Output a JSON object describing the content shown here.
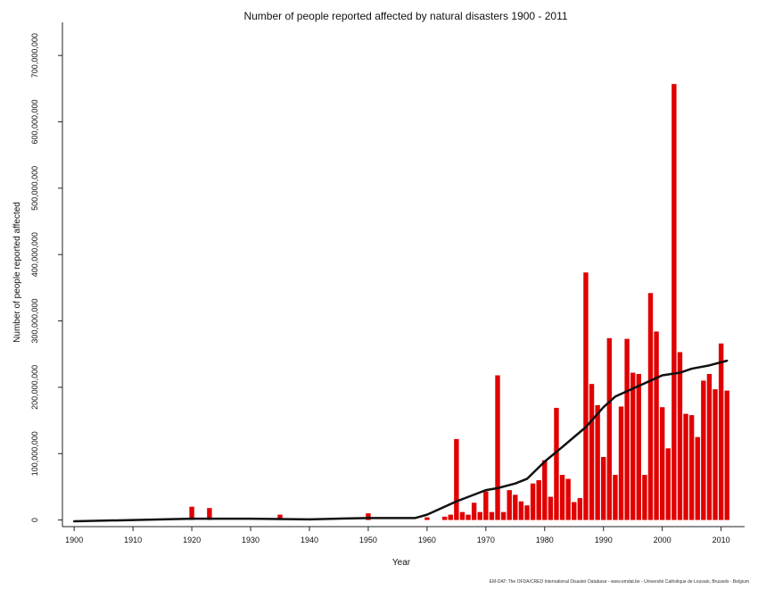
{
  "chart_data": {
    "type": "bar",
    "title": "Number of people reported affected by natural disasters 1900 - 2011",
    "xlabel": "Year",
    "ylabel": "Number of people reported affected",
    "source": "EM-DAT: The OFDA/CRED International Disaster Database - www.emdat.be - Université Catholique de Louvain, Brussels - Belgium",
    "xlim": [
      1898,
      2014
    ],
    "ylim": [
      -10000000,
      750000000
    ],
    "x_ticks": [
      1900,
      1910,
      1920,
      1930,
      1940,
      1950,
      1960,
      1970,
      1980,
      1990,
      2000,
      2010
    ],
    "x_tick_labels": [
      "1900",
      "1910",
      "1920",
      "1930",
      "1940",
      "1950",
      "1960",
      "1970",
      "1980",
      "1990",
      "2000",
      "2010"
    ],
    "y_ticks": [
      0,
      100000000,
      200000000,
      300000000,
      400000000,
      500000000,
      600000000,
      700000000
    ],
    "y_tick_labels": [
      "0",
      "100,000,000",
      "200,000,000",
      "300,000,000",
      "400,000,000",
      "500,000,000",
      "600,000,000",
      "700,000,000"
    ],
    "grid": false,
    "bar_color": "#e00000",
    "trend_color": "#111111",
    "series": [
      {
        "type": "bar",
        "x": [
          1920,
          1923,
          1935,
          1950,
          1960,
          1963,
          1964,
          1965,
          1966,
          1967,
          1968,
          1969,
          1970,
          1971,
          1972,
          1973,
          1974,
          1975,
          1976,
          1977,
          1978,
          1979,
          1980,
          1981,
          1982,
          1983,
          1984,
          1985,
          1986,
          1987,
          1988,
          1989,
          1990,
          1991,
          1992,
          1993,
          1994,
          1995,
          1996,
          1997,
          1998,
          1999,
          2000,
          2001,
          2002,
          2003,
          2004,
          2005,
          2006,
          2007,
          2008,
          2009,
          2010,
          2011
        ],
        "values": [
          20000000,
          18000000,
          8000000,
          10000000,
          4000000,
          5000000,
          8000000,
          122000000,
          12000000,
          8000000,
          26000000,
          12000000,
          43000000,
          12000000,
          218000000,
          12000000,
          45000000,
          38000000,
          28000000,
          22000000,
          55000000,
          60000000,
          90000000,
          35000000,
          169000000,
          68000000,
          62000000,
          27000000,
          33000000,
          373000000,
          205000000,
          173000000,
          95000000,
          274000000,
          68000000,
          171000000,
          273000000,
          222000000,
          220000000,
          68000000,
          342000000,
          284000000,
          170000000,
          108000000,
          657000000,
          253000000,
          160000000,
          158000000,
          125000000,
          210000000,
          220000000,
          197000000,
          266000000,
          195000000
        ]
      },
      {
        "type": "line",
        "x": [
          1900,
          1910,
          1920,
          1930,
          1940,
          1950,
          1958,
          1960,
          1965,
          1970,
          1972,
          1975,
          1977,
          1980,
          1983,
          1985,
          1987,
          1990,
          1992,
          1995,
          1998,
          2000,
          2003,
          2005,
          2008,
          2011
        ],
        "values": [
          -2000000,
          0,
          2000000,
          2000000,
          1000000,
          3000000,
          3000000,
          8000000,
          28000000,
          45000000,
          48000000,
          55000000,
          62000000,
          88000000,
          110000000,
          125000000,
          140000000,
          170000000,
          186000000,
          198000000,
          210000000,
          218000000,
          222000000,
          228000000,
          233000000,
          240000000
        ]
      }
    ]
  }
}
